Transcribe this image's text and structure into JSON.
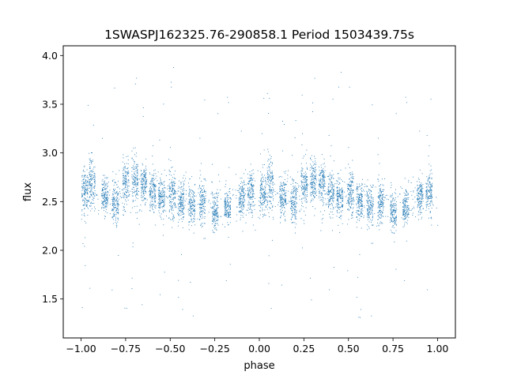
{
  "chart_data": {
    "type": "scatter",
    "title": "1SWASPJ162325.76-290858.1 Period 1503439.75s",
    "xlabel": "phase",
    "ylabel": "flux",
    "xlim": [
      -1.1,
      1.1
    ],
    "ylim": [
      1.1,
      4.1
    ],
    "xticks": [
      -1.0,
      -0.75,
      -0.5,
      -0.25,
      0.0,
      0.25,
      0.5,
      0.75,
      1.0
    ],
    "xtick_labels": [
      "−1.00",
      "−0.75",
      "−0.50",
      "−0.25",
      "0.00",
      "0.25",
      "0.50",
      "0.75",
      "1.00"
    ],
    "yticks": [
      1.5,
      2.0,
      2.5,
      3.0,
      3.5,
      4.0
    ],
    "ytick_labels": [
      "1.5",
      "2.0",
      "2.5",
      "3.0",
      "3.5",
      "4.0"
    ],
    "grid": false,
    "marker_color": "#1f77b4",
    "series": [
      {
        "description_of_structure": "dense vertical clumps of points; pattern repeats with period 1.0 in phase",
        "x_range": [
          -1.0,
          1.0
        ],
        "clumps_phase": [
          -0.98,
          -0.94,
          -0.87,
          -0.81,
          -0.75,
          -0.7,
          -0.65,
          -0.6,
          -0.55,
          -0.49,
          -0.44,
          -0.38,
          -0.32,
          -0.25,
          -0.18,
          -0.1,
          -0.05
        ],
        "clump_typical_flux": [
          2.6,
          2.7,
          2.55,
          2.5,
          2.7,
          2.75,
          2.7,
          2.6,
          2.55,
          2.6,
          2.5,
          2.45,
          2.5,
          2.4,
          2.45,
          2.55,
          2.6
        ],
        "clump_spread": [
          0.35,
          0.4,
          0.3,
          0.35,
          0.4,
          0.35,
          0.3,
          0.35,
          0.3,
          0.4,
          0.3,
          0.3,
          0.35,
          0.3,
          0.25,
          0.3,
          0.35
        ],
        "flux_min": 1.3,
        "flux_max": 4.0
      }
    ]
  }
}
